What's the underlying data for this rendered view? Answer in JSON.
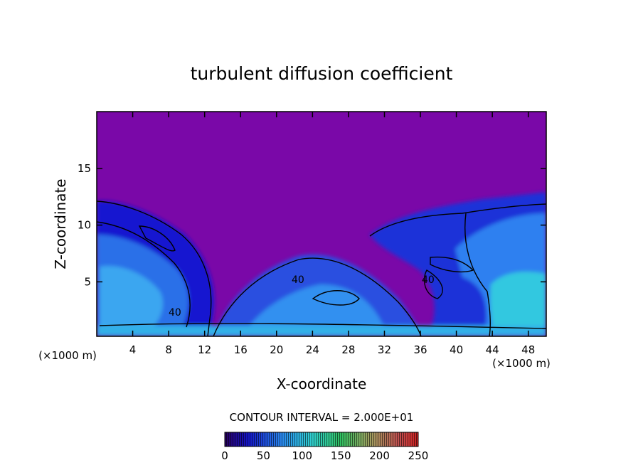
{
  "chart_data": {
    "type": "heatmap",
    "title": "turbulent diffusion coefficient",
    "xlabel": "X-coordinate",
    "ylabel": "Z-coordinate",
    "x_unit": "(×1000 m)",
    "y_unit": "(×1000 m)",
    "xlim": [
      0,
      50
    ],
    "ylim": [
      0.2,
      20
    ],
    "x_ticks": [
      "4",
      "8",
      "12",
      "16",
      "20",
      "24",
      "28",
      "32",
      "36",
      "40",
      "44",
      "48"
    ],
    "y_ticks": [
      "5",
      "10",
      "15"
    ],
    "contour_interval_label": "CONTOUR INTERVAL = 2.000E+01",
    "contour_labels": [
      "40",
      "40",
      "40"
    ],
    "colorbar": {
      "range": [
        0,
        250
      ],
      "tick_labels": [
        "0",
        "50",
        "100",
        "150",
        "200",
        "250"
      ]
    },
    "colors": {
      "background_field": "#7a08a8",
      "low": "#1a1ad0",
      "mid": "#3aa0f0",
      "high": "#30e0c0"
    }
  }
}
